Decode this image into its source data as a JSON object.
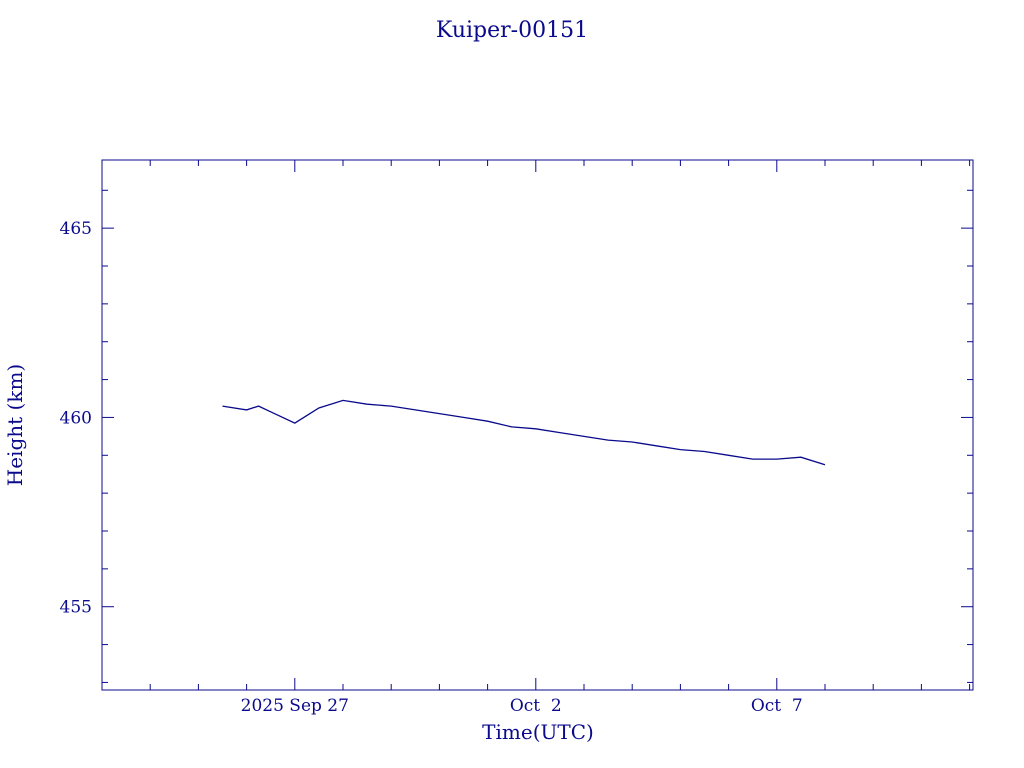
{
  "colors": {
    "ink": "#0a0a8c",
    "background": "#ffffff"
  },
  "chart_data": {
    "type": "line",
    "title": "Kuiper-00151",
    "xlabel": "Time(UTC)",
    "ylabel": "Height (km)",
    "x_tick_labels": [
      "2025 Sep 27",
      "Oct  2",
      "Oct  7"
    ],
    "y_tick_labels": [
      "455",
      "460",
      "465"
    ],
    "grid": false,
    "legend": "none",
    "series": [
      {
        "x": [
          "2025-09-25T12:00",
          "2025-09-26T00:00",
          "2025-09-26T06:00",
          "2025-09-26T12:00",
          "2025-09-27T00:00",
          "2025-09-27T12:00",
          "2025-09-28T00:00",
          "2025-09-28T12:00",
          "2025-09-29T00:00",
          "2025-09-29T12:00",
          "2025-09-30T00:00",
          "2025-09-30T12:00",
          "2025-10-01T00:00",
          "2025-10-01T12:00",
          "2025-10-02T00:00",
          "2025-10-02T12:00",
          "2025-10-03T00:00",
          "2025-10-03T12:00",
          "2025-10-04T00:00",
          "2025-10-04T12:00",
          "2025-10-05T00:00",
          "2025-10-05T12:00",
          "2025-10-06T00:00",
          "2025-10-06T12:00",
          "2025-10-07T00:00",
          "2025-10-07T12:00",
          "2025-10-08T00:00"
        ],
        "y": [
          460.3,
          460.2,
          460.3,
          460.15,
          459.85,
          460.25,
          460.45,
          460.35,
          460.3,
          460.2,
          460.1,
          460.0,
          459.9,
          459.75,
          459.7,
          459.6,
          459.5,
          459.4,
          459.35,
          459.25,
          459.15,
          459.1,
          459.0,
          458.9,
          458.9,
          458.95,
          458.75
        ]
      }
    ]
  }
}
